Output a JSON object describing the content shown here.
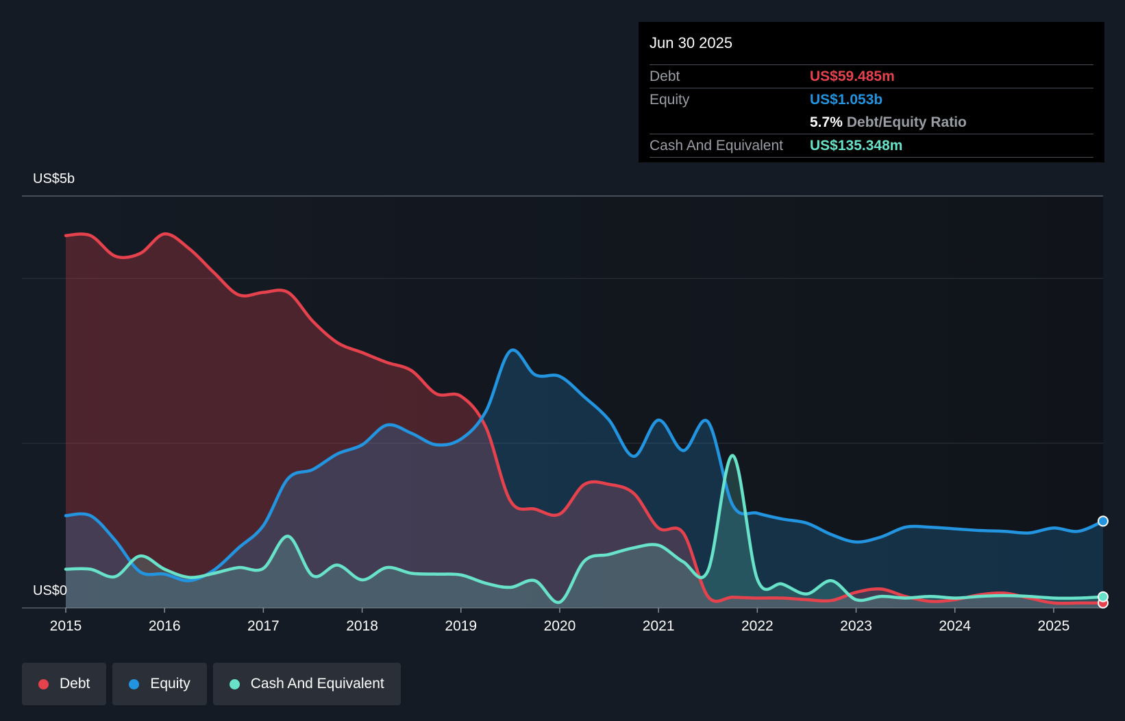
{
  "tooltip": {
    "date": "Jun 30 2025",
    "debt_label": "Debt",
    "debt_value": "US$59.485m",
    "equity_label": "Equity",
    "equity_value": "US$1.053b",
    "ratio_pct": "5.7%",
    "ratio_label": "Debt/Equity Ratio",
    "cash_label": "Cash And Equivalent",
    "cash_value": "US$135.348m"
  },
  "legend": [
    {
      "label": "Debt",
      "color": "#e5424d"
    },
    {
      "label": "Equity",
      "color": "#2394df"
    },
    {
      "label": "Cash And Equivalent",
      "color": "#68e3c9"
    }
  ],
  "chart_data": {
    "type": "area",
    "y_axis_labels": {
      "top": "US$5b",
      "bottom": "US$0"
    },
    "ylim": [
      0,
      5
    ],
    "xlim": [
      2015.0,
      2025.5
    ],
    "x_ticks": [
      2015,
      2016,
      2017,
      2018,
      2019,
      2020,
      2021,
      2022,
      2023,
      2024,
      2025
    ],
    "x_tick_labels": [
      "2015",
      "2016",
      "2017",
      "2018",
      "2019",
      "2020",
      "2021",
      "2022",
      "2023",
      "2024",
      "2025"
    ],
    "grid": true,
    "units": "US$ billions",
    "series": [
      {
        "name": "Debt",
        "color": "#e5424d",
        "points": [
          [
            2015.0,
            4.52
          ],
          [
            2015.25,
            4.52
          ],
          [
            2015.5,
            4.27
          ],
          [
            2015.75,
            4.3
          ],
          [
            2016.0,
            4.54
          ],
          [
            2016.25,
            4.36
          ],
          [
            2016.5,
            4.07
          ],
          [
            2016.75,
            3.8
          ],
          [
            2017.0,
            3.83
          ],
          [
            2017.25,
            3.83
          ],
          [
            2017.5,
            3.48
          ],
          [
            2017.75,
            3.22
          ],
          [
            2018.0,
            3.1
          ],
          [
            2018.25,
            2.98
          ],
          [
            2018.5,
            2.88
          ],
          [
            2018.75,
            2.6
          ],
          [
            2019.0,
            2.57
          ],
          [
            2019.25,
            2.2
          ],
          [
            2019.5,
            1.3
          ],
          [
            2019.75,
            1.2
          ],
          [
            2020.0,
            1.14
          ],
          [
            2020.25,
            1.5
          ],
          [
            2020.5,
            1.5
          ],
          [
            2020.75,
            1.39
          ],
          [
            2021.0,
            0.97
          ],
          [
            2021.25,
            0.91
          ],
          [
            2021.5,
            0.14
          ],
          [
            2021.75,
            0.13
          ],
          [
            2022.0,
            0.12
          ],
          [
            2022.25,
            0.12
          ],
          [
            2022.5,
            0.1
          ],
          [
            2022.75,
            0.09
          ],
          [
            2023.0,
            0.19
          ],
          [
            2023.25,
            0.23
          ],
          [
            2023.5,
            0.14
          ],
          [
            2023.75,
            0.08
          ],
          [
            2024.0,
            0.1
          ],
          [
            2024.25,
            0.16
          ],
          [
            2024.5,
            0.18
          ],
          [
            2024.75,
            0.12
          ],
          [
            2025.0,
            0.06
          ],
          [
            2025.25,
            0.06
          ],
          [
            2025.5,
            0.06
          ]
        ]
      },
      {
        "name": "Equity",
        "color": "#2394df",
        "points": [
          [
            2015.0,
            1.12
          ],
          [
            2015.25,
            1.12
          ],
          [
            2015.5,
            0.82
          ],
          [
            2015.75,
            0.44
          ],
          [
            2016.0,
            0.41
          ],
          [
            2016.25,
            0.33
          ],
          [
            2016.5,
            0.46
          ],
          [
            2016.75,
            0.73
          ],
          [
            2017.0,
            1.0
          ],
          [
            2017.25,
            1.57
          ],
          [
            2017.5,
            1.68
          ],
          [
            2017.75,
            1.87
          ],
          [
            2018.0,
            1.98
          ],
          [
            2018.25,
            2.22
          ],
          [
            2018.5,
            2.12
          ],
          [
            2018.75,
            1.98
          ],
          [
            2019.0,
            2.05
          ],
          [
            2019.25,
            2.38
          ],
          [
            2019.5,
            3.12
          ],
          [
            2019.75,
            2.83
          ],
          [
            2020.0,
            2.81
          ],
          [
            2020.25,
            2.56
          ],
          [
            2020.5,
            2.28
          ],
          [
            2020.75,
            1.84
          ],
          [
            2021.0,
            2.28
          ],
          [
            2021.25,
            1.91
          ],
          [
            2021.5,
            2.26
          ],
          [
            2021.75,
            1.25
          ],
          [
            2022.0,
            1.15
          ],
          [
            2022.25,
            1.08
          ],
          [
            2022.5,
            1.03
          ],
          [
            2022.75,
            0.89
          ],
          [
            2023.0,
            0.8
          ],
          [
            2023.25,
            0.86
          ],
          [
            2023.5,
            0.98
          ],
          [
            2023.75,
            0.98
          ],
          [
            2024.0,
            0.96
          ],
          [
            2024.25,
            0.94
          ],
          [
            2024.5,
            0.93
          ],
          [
            2024.75,
            0.91
          ],
          [
            2025.0,
            0.97
          ],
          [
            2025.25,
            0.93
          ],
          [
            2025.5,
            1.053
          ]
        ]
      },
      {
        "name": "Cash And Equivalent",
        "color": "#68e3c9",
        "points": [
          [
            2015.0,
            0.47
          ],
          [
            2015.25,
            0.47
          ],
          [
            2015.5,
            0.38
          ],
          [
            2015.75,
            0.63
          ],
          [
            2016.0,
            0.47
          ],
          [
            2016.25,
            0.37
          ],
          [
            2016.5,
            0.42
          ],
          [
            2016.75,
            0.49
          ],
          [
            2017.0,
            0.48
          ],
          [
            2017.25,
            0.87
          ],
          [
            2017.5,
            0.39
          ],
          [
            2017.75,
            0.52
          ],
          [
            2018.0,
            0.34
          ],
          [
            2018.25,
            0.49
          ],
          [
            2018.5,
            0.42
          ],
          [
            2018.75,
            0.41
          ],
          [
            2019.0,
            0.4
          ],
          [
            2019.25,
            0.3
          ],
          [
            2019.5,
            0.25
          ],
          [
            2019.75,
            0.33
          ],
          [
            2020.0,
            0.07
          ],
          [
            2020.25,
            0.57
          ],
          [
            2020.5,
            0.65
          ],
          [
            2020.75,
            0.73
          ],
          [
            2021.0,
            0.76
          ],
          [
            2021.25,
            0.56
          ],
          [
            2021.5,
            0.45
          ],
          [
            2021.75,
            1.85
          ],
          [
            2022.0,
            0.35
          ],
          [
            2022.25,
            0.29
          ],
          [
            2022.5,
            0.17
          ],
          [
            2022.75,
            0.33
          ],
          [
            2023.0,
            0.1
          ],
          [
            2023.25,
            0.14
          ],
          [
            2023.5,
            0.12
          ],
          [
            2023.75,
            0.14
          ],
          [
            2024.0,
            0.12
          ],
          [
            2024.25,
            0.14
          ],
          [
            2024.5,
            0.15
          ],
          [
            2024.75,
            0.14
          ],
          [
            2025.0,
            0.12
          ],
          [
            2025.25,
            0.12
          ],
          [
            2025.5,
            0.135
          ]
        ]
      }
    ]
  }
}
